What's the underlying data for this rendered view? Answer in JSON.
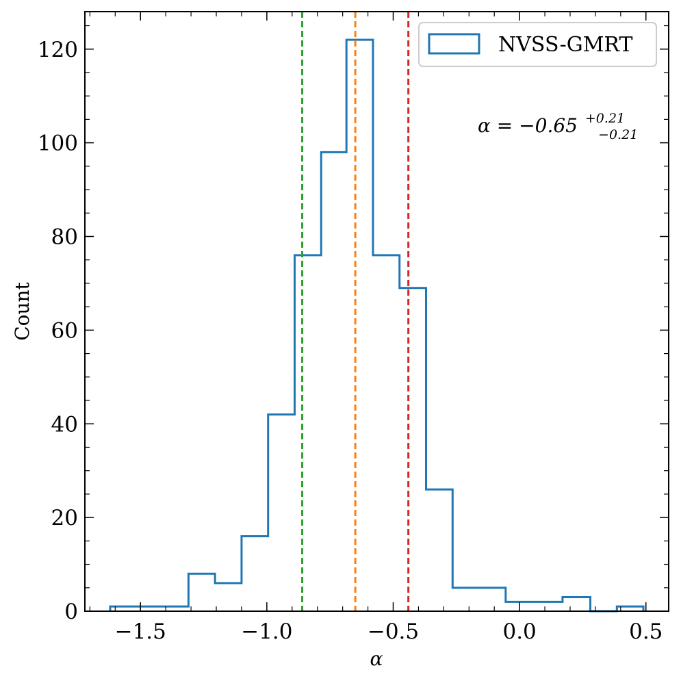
{
  "chart_data": {
    "type": "histogram",
    "title": "",
    "xlabel": "α",
    "ylabel": "Count",
    "xlim": [
      -1.72,
      0.59
    ],
    "ylim": [
      0,
      128
    ],
    "xticks": [
      -1.5,
      -1.0,
      -0.5,
      0.0,
      0.5
    ],
    "xtick_labels": [
      "−1.5",
      "−1.0",
      "−0.5",
      "0.0",
      "0.5"
    ],
    "yticks": [
      0,
      20,
      40,
      60,
      80,
      100,
      120
    ],
    "ytick_labels": [
      "0",
      "20",
      "40",
      "60",
      "80",
      "100",
      "120"
    ],
    "grid": false,
    "legend": {
      "position": "top-right",
      "entries": [
        "NVSS-GMRT"
      ]
    },
    "series": [
      {
        "name": "NVSS-GMRT",
        "color": "#1f77b4",
        "bin_edges": [
          -1.62,
          -1.515,
          -1.41,
          -1.31,
          -1.205,
          -1.1,
          -0.995,
          -0.89,
          -0.785,
          -0.685,
          -0.58,
          -0.475,
          -0.37,
          -0.265,
          -0.16,
          -0.055,
          0.05,
          0.17,
          0.28,
          0.385,
          0.49
        ],
        "counts": [
          1,
          1,
          1,
          8,
          6,
          16,
          42,
          76,
          98,
          122,
          76,
          69,
          26,
          5,
          5,
          2,
          2,
          3,
          0,
          1
        ]
      }
    ],
    "vlines": [
      {
        "x": -0.86,
        "color": "#2ca02c",
        "style": "dashed"
      },
      {
        "x": -0.65,
        "color": "#ff7f0e",
        "style": "dashed"
      },
      {
        "x": -0.44,
        "color": "#d62728",
        "style": "dashed"
      }
    ],
    "annotation": {
      "prefix": "α = −0.65",
      "superscript": "+0.21",
      "subscript": "−0.21"
    }
  }
}
